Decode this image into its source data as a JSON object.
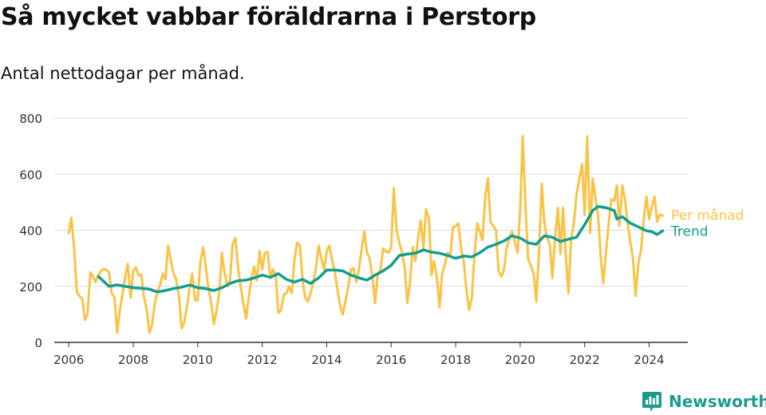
{
  "header": {
    "title": "Så mycket vabbar föräldrarna i Perstorp",
    "subtitle": "Antal nettodagar per månad."
  },
  "brand": {
    "name": "Newsworthy",
    "icon": "bar-chart-logo-icon",
    "color": "#1d9a8e"
  },
  "chart_data": {
    "type": "line",
    "x_axis": {
      "type": "time",
      "range": [
        2005.55,
        2025.2
      ],
      "ticks": [
        "2006",
        "2008",
        "2010",
        "2012",
        "2014",
        "2016",
        "2018",
        "2020",
        "2022",
        "2024"
      ]
    },
    "y_axis": {
      "range": [
        0,
        800
      ],
      "ticks": [
        "0",
        "200",
        "400",
        "600",
        "800"
      ],
      "grid": true
    },
    "legend": "direct-labels-right",
    "series": [
      {
        "name": "Per månad",
        "color": "#fbc346",
        "points": [
          [
            2006.0,
            390
          ],
          [
            2006.08,
            445
          ],
          [
            2006.17,
            330
          ],
          [
            2006.25,
            180
          ],
          [
            2006.33,
            165
          ],
          [
            2006.42,
            155
          ],
          [
            2006.5,
            80
          ],
          [
            2006.58,
            100
          ],
          [
            2006.67,
            250
          ],
          [
            2006.75,
            235
          ],
          [
            2006.83,
            215
          ],
          [
            2006.92,
            240
          ],
          [
            2007.0,
            255
          ],
          [
            2007.08,
            262
          ],
          [
            2007.17,
            258
          ],
          [
            2007.25,
            250
          ],
          [
            2007.33,
            175
          ],
          [
            2007.42,
            160
          ],
          [
            2007.5,
            35
          ],
          [
            2007.58,
            110
          ],
          [
            2007.67,
            175
          ],
          [
            2007.75,
            235
          ],
          [
            2007.83,
            280
          ],
          [
            2007.92,
            160
          ],
          [
            2008.0,
            255
          ],
          [
            2008.08,
            268
          ],
          [
            2008.17,
            238
          ],
          [
            2008.25,
            242
          ],
          [
            2008.33,
            165
          ],
          [
            2008.42,
            115
          ],
          [
            2008.5,
            35
          ],
          [
            2008.58,
            60
          ],
          [
            2008.67,
            140
          ],
          [
            2008.75,
            180
          ],
          [
            2008.83,
            205
          ],
          [
            2008.92,
            245
          ],
          [
            2009.0,
            225
          ],
          [
            2009.08,
            345
          ],
          [
            2009.17,
            290
          ],
          [
            2009.25,
            245
          ],
          [
            2009.33,
            225
          ],
          [
            2009.42,
            160
          ],
          [
            2009.5,
            50
          ],
          [
            2009.58,
            70
          ],
          [
            2009.67,
            130
          ],
          [
            2009.75,
            195
          ],
          [
            2009.83,
            245
          ],
          [
            2009.92,
            150
          ],
          [
            2010.0,
            150
          ],
          [
            2010.08,
            285
          ],
          [
            2010.17,
            340
          ],
          [
            2010.25,
            270
          ],
          [
            2010.33,
            195
          ],
          [
            2010.42,
            140
          ],
          [
            2010.5,
            65
          ],
          [
            2010.58,
            110
          ],
          [
            2010.67,
            180
          ],
          [
            2010.75,
            320
          ],
          [
            2010.83,
            250
          ],
          [
            2010.92,
            200
          ],
          [
            2011.0,
            220
          ],
          [
            2011.08,
            350
          ],
          [
            2011.17,
            372
          ],
          [
            2011.25,
            270
          ],
          [
            2011.33,
            200
          ],
          [
            2011.42,
            135
          ],
          [
            2011.5,
            85
          ],
          [
            2011.58,
            160
          ],
          [
            2011.67,
            230
          ],
          [
            2011.75,
            270
          ],
          [
            2011.83,
            220
          ],
          [
            2011.92,
            325
          ],
          [
            2012.0,
            260
          ],
          [
            2012.08,
            320
          ],
          [
            2012.17,
            322
          ],
          [
            2012.25,
            230
          ],
          [
            2012.33,
            260
          ],
          [
            2012.42,
            240
          ],
          [
            2012.5,
            105
          ],
          [
            2012.58,
            115
          ],
          [
            2012.67,
            170
          ],
          [
            2012.75,
            175
          ],
          [
            2012.83,
            200
          ],
          [
            2012.92,
            175
          ],
          [
            2013.0,
            295
          ],
          [
            2013.08,
            355
          ],
          [
            2013.17,
            345
          ],
          [
            2013.25,
            225
          ],
          [
            2013.33,
            160
          ],
          [
            2013.42,
            145
          ],
          [
            2013.5,
            175
          ],
          [
            2013.58,
            210
          ],
          [
            2013.67,
            270
          ],
          [
            2013.75,
            345
          ],
          [
            2013.83,
            300
          ],
          [
            2013.92,
            260
          ],
          [
            2014.0,
            325
          ],
          [
            2014.08,
            345
          ],
          [
            2014.17,
            295
          ],
          [
            2014.25,
            255
          ],
          [
            2014.33,
            190
          ],
          [
            2014.42,
            130
          ],
          [
            2014.5,
            100
          ],
          [
            2014.58,
            145
          ],
          [
            2014.67,
            200
          ],
          [
            2014.75,
            260
          ],
          [
            2014.83,
            265
          ],
          [
            2014.92,
            215
          ],
          [
            2015.0,
            260
          ],
          [
            2015.08,
            330
          ],
          [
            2015.17,
            395
          ],
          [
            2015.25,
            320
          ],
          [
            2015.33,
            300
          ],
          [
            2015.42,
            235
          ],
          [
            2015.5,
            140
          ],
          [
            2015.58,
            240
          ],
          [
            2015.67,
            260
          ],
          [
            2015.75,
            335
          ],
          [
            2015.83,
            325
          ],
          [
            2015.92,
            320
          ],
          [
            2016.0,
            340
          ],
          [
            2016.08,
            550
          ],
          [
            2016.17,
            400
          ],
          [
            2016.25,
            355
          ],
          [
            2016.33,
            325
          ],
          [
            2016.42,
            265
          ],
          [
            2016.5,
            140
          ],
          [
            2016.58,
            210
          ],
          [
            2016.67,
            340
          ],
          [
            2016.75,
            290
          ],
          [
            2016.83,
            370
          ],
          [
            2016.92,
            435
          ],
          [
            2017.0,
            335
          ],
          [
            2017.08,
            475
          ],
          [
            2017.17,
            445
          ],
          [
            2017.25,
            240
          ],
          [
            2017.33,
            290
          ],
          [
            2017.42,
            230
          ],
          [
            2017.5,
            125
          ],
          [
            2017.58,
            245
          ],
          [
            2017.67,
            280
          ],
          [
            2017.75,
            320
          ],
          [
            2017.83,
            310
          ],
          [
            2017.92,
            410
          ],
          [
            2018.0,
            415
          ],
          [
            2018.08,
            425
          ],
          [
            2018.17,
            335
          ],
          [
            2018.25,
            290
          ],
          [
            2018.33,
            190
          ],
          [
            2018.42,
            115
          ],
          [
            2018.5,
            160
          ],
          [
            2018.58,
            305
          ],
          [
            2018.67,
            425
          ],
          [
            2018.75,
            395
          ],
          [
            2018.83,
            365
          ],
          [
            2018.92,
            520
          ],
          [
            2019.0,
            585
          ],
          [
            2019.08,
            430
          ],
          [
            2019.17,
            415
          ],
          [
            2019.25,
            400
          ],
          [
            2019.33,
            255
          ],
          [
            2019.42,
            235
          ],
          [
            2019.5,
            260
          ],
          [
            2019.58,
            335
          ],
          [
            2019.67,
            375
          ],
          [
            2019.75,
            395
          ],
          [
            2019.83,
            360
          ],
          [
            2019.92,
            320
          ],
          [
            2020.0,
            475
          ],
          [
            2020.08,
            735
          ],
          [
            2020.17,
            470
          ],
          [
            2020.25,
            295
          ],
          [
            2020.33,
            275
          ],
          [
            2020.42,
            245
          ],
          [
            2020.5,
            145
          ],
          [
            2020.58,
            310
          ],
          [
            2020.67,
            565
          ],
          [
            2020.75,
            425
          ],
          [
            2020.83,
            375
          ],
          [
            2020.92,
            350
          ],
          [
            2021.0,
            230
          ],
          [
            2021.08,
            370
          ],
          [
            2021.17,
            480
          ],
          [
            2021.25,
            315
          ],
          [
            2021.33,
            480
          ],
          [
            2021.42,
            300
          ],
          [
            2021.5,
            175
          ],
          [
            2021.58,
            365
          ],
          [
            2021.67,
            430
          ],
          [
            2021.75,
            530
          ],
          [
            2021.83,
            580
          ],
          [
            2021.92,
            635
          ],
          [
            2022.0,
            455
          ],
          [
            2022.08,
            735
          ],
          [
            2022.17,
            390
          ],
          [
            2022.25,
            585
          ],
          [
            2022.33,
            520
          ],
          [
            2022.42,
            450
          ],
          [
            2022.5,
            305
          ],
          [
            2022.58,
            210
          ],
          [
            2022.67,
            330
          ],
          [
            2022.75,
            430
          ],
          [
            2022.83,
            510
          ],
          [
            2022.92,
            505
          ],
          [
            2023.0,
            560
          ],
          [
            2023.08,
            415
          ],
          [
            2023.17,
            560
          ],
          [
            2023.25,
            510
          ],
          [
            2023.33,
            430
          ],
          [
            2023.42,
            355
          ],
          [
            2023.5,
            300
          ],
          [
            2023.58,
            165
          ],
          [
            2023.67,
            285
          ],
          [
            2023.75,
            330
          ],
          [
            2023.83,
            435
          ],
          [
            2023.92,
            520
          ],
          [
            2024.0,
            440
          ],
          [
            2024.08,
            480
          ],
          [
            2024.17,
            520
          ],
          [
            2024.25,
            430
          ],
          [
            2024.33,
            455
          ],
          [
            2024.42,
            452
          ]
        ]
      },
      {
        "name": "Trend",
        "color": "#139e91",
        "points": [
          [
            2006.92,
            235
          ],
          [
            2007.25,
            200
          ],
          [
            2007.5,
            205
          ],
          [
            2007.75,
            200
          ],
          [
            2008.0,
            195
          ],
          [
            2008.25,
            193
          ],
          [
            2008.5,
            190
          ],
          [
            2008.75,
            180
          ],
          [
            2009.0,
            185
          ],
          [
            2009.25,
            192
          ],
          [
            2009.5,
            197
          ],
          [
            2009.75,
            205
          ],
          [
            2010.0,
            195
          ],
          [
            2010.25,
            192
          ],
          [
            2010.5,
            185
          ],
          [
            2010.75,
            195
          ],
          [
            2011.0,
            210
          ],
          [
            2011.25,
            220
          ],
          [
            2011.5,
            222
          ],
          [
            2011.75,
            230
          ],
          [
            2012.0,
            240
          ],
          [
            2012.25,
            232
          ],
          [
            2012.5,
            245
          ],
          [
            2012.75,
            225
          ],
          [
            2013.0,
            215
          ],
          [
            2013.25,
            225
          ],
          [
            2013.5,
            210
          ],
          [
            2013.75,
            230
          ],
          [
            2014.0,
            258
          ],
          [
            2014.25,
            258
          ],
          [
            2014.5,
            255
          ],
          [
            2014.75,
            240
          ],
          [
            2015.0,
            230
          ],
          [
            2015.25,
            222
          ],
          [
            2015.5,
            240
          ],
          [
            2015.75,
            255
          ],
          [
            2016.0,
            275
          ],
          [
            2016.25,
            310
          ],
          [
            2016.5,
            315
          ],
          [
            2016.75,
            318
          ],
          [
            2017.0,
            330
          ],
          [
            2017.25,
            322
          ],
          [
            2017.5,
            318
          ],
          [
            2017.75,
            310
          ],
          [
            2018.0,
            300
          ],
          [
            2018.25,
            308
          ],
          [
            2018.5,
            305
          ],
          [
            2018.75,
            320
          ],
          [
            2019.0,
            340
          ],
          [
            2019.25,
            350
          ],
          [
            2019.5,
            362
          ],
          [
            2019.75,
            380
          ],
          [
            2020.0,
            372
          ],
          [
            2020.25,
            355
          ],
          [
            2020.5,
            350
          ],
          [
            2020.75,
            380
          ],
          [
            2021.0,
            375
          ],
          [
            2021.25,
            360
          ],
          [
            2021.5,
            368
          ],
          [
            2021.75,
            375
          ],
          [
            2022.0,
            420
          ],
          [
            2022.25,
            470
          ],
          [
            2022.42,
            485
          ],
          [
            2022.67,
            480
          ],
          [
            2022.92,
            470
          ],
          [
            2023.0,
            440
          ],
          [
            2023.17,
            448
          ],
          [
            2023.42,
            425
          ],
          [
            2023.67,
            412
          ],
          [
            2023.92,
            398
          ],
          [
            2024.08,
            395
          ],
          [
            2024.25,
            385
          ],
          [
            2024.42,
            398
          ]
        ]
      }
    ]
  }
}
